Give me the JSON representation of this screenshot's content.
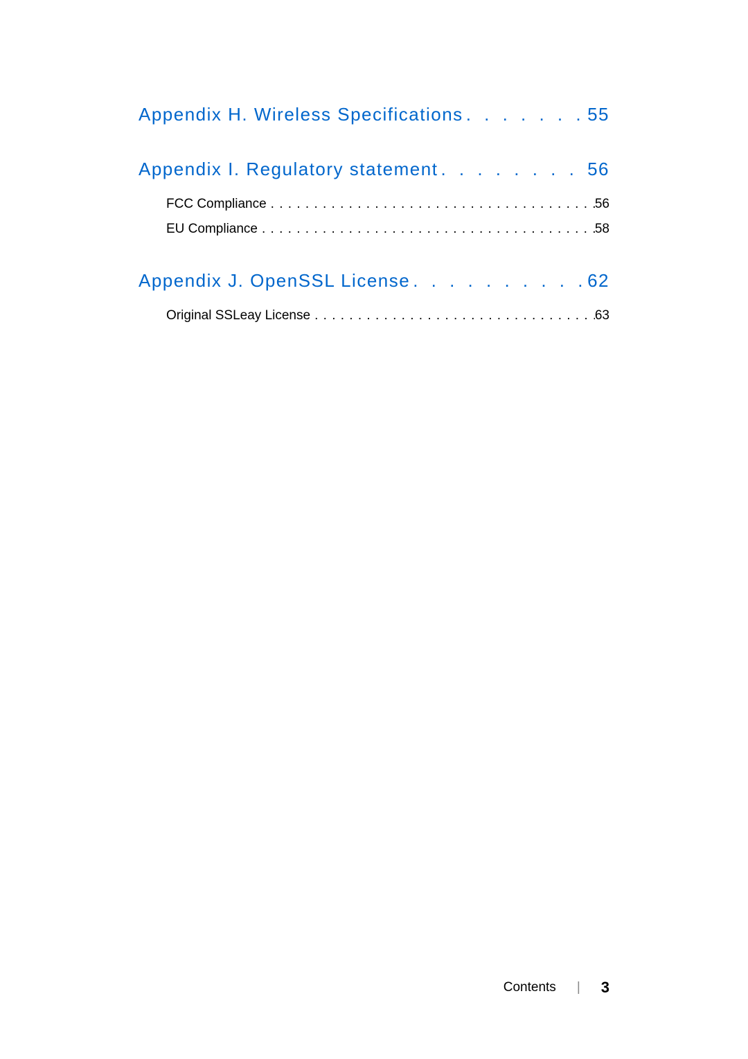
{
  "toc": {
    "sections": [
      {
        "title": "Appendix H. Wireless Specifications",
        "page": "55",
        "subs": []
      },
      {
        "title": "Appendix I. Regulatory statement",
        "page": "56",
        "subs": [
          {
            "title": "FCC Compliance",
            "page": "56"
          },
          {
            "title": "EU Compliance",
            "page": "58"
          }
        ]
      },
      {
        "title": "Appendix J. OpenSSL License",
        "page": "62",
        "subs": [
          {
            "title": "Original SSLeay License",
            "page": "63"
          }
        ]
      }
    ]
  },
  "footer": {
    "label": "Contents",
    "divider": "|",
    "page": "3"
  },
  "style": {
    "main_color": "#0066cc",
    "sub_color": "#000000",
    "background": "#ffffff",
    "main_fontsize": 26,
    "sub_fontsize": 19,
    "main_dots": ". . . . . . . . . . . . . . . . . . . . . . . . . . . . . .",
    "sub_dots": " . . . . . . . . . . . . . . . . . . . . . . . . . . . . . . . . . . . . . . . . . . . . . . . . . . . . . . . . . . . ."
  }
}
